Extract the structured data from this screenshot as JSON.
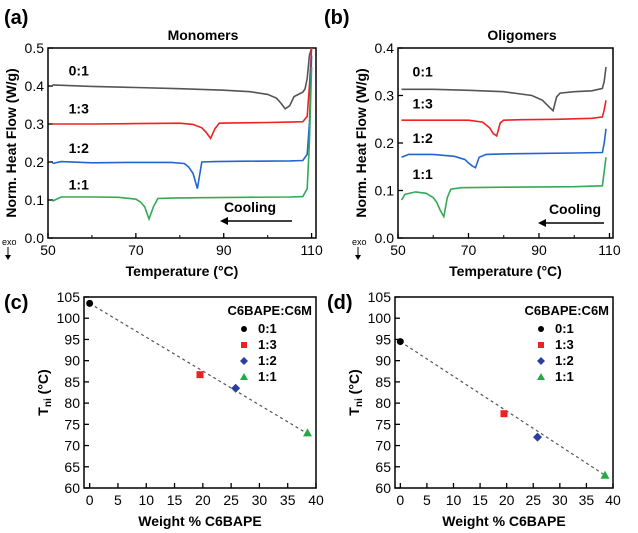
{
  "chart_data": [
    {
      "id": "a",
      "panel_label": "(a)",
      "type": "line",
      "title": "Monomers",
      "xlabel": "Temperature (°C)",
      "ylabel": "Norm. Heat Flow (W/g)",
      "xlim": [
        50,
        111
      ],
      "ylim": [
        0,
        0.5
      ],
      "xticks": [
        "50",
        "70",
        "90",
        "110"
      ],
      "yticks": [
        "0.0",
        "0.1",
        "0.2",
        "0.3",
        "0.4",
        "0.5"
      ],
      "annotation": "Cooling",
      "exo_label": "exo",
      "series": [
        {
          "name": "0:1",
          "color": "#555555",
          "x": [
            51,
            60,
            70,
            80,
            90,
            96,
            100,
            102,
            103,
            104,
            105,
            106,
            107,
            108,
            108.5,
            109,
            109.5,
            110
          ],
          "y": [
            0.403,
            0.399,
            0.396,
            0.393,
            0.389,
            0.385,
            0.378,
            0.368,
            0.355,
            0.34,
            0.348,
            0.372,
            0.378,
            0.384,
            0.392,
            0.42,
            0.48,
            0.5
          ]
        },
        {
          "name": "1:3",
          "color": "#ee2222",
          "x": [
            51,
            60,
            70,
            80,
            83,
            85,
            86,
            87,
            88,
            89,
            92,
            100,
            105,
            108,
            109,
            109.5,
            110
          ],
          "y": [
            0.3,
            0.3,
            0.301,
            0.302,
            0.299,
            0.29,
            0.278,
            0.262,
            0.288,
            0.302,
            0.303,
            0.304,
            0.305,
            0.306,
            0.32,
            0.4,
            0.5
          ]
        },
        {
          "name": "1:2",
          "color": "#2266cc",
          "x": [
            51,
            53,
            60,
            70,
            78,
            81,
            82,
            83,
            84,
            85,
            88,
            95,
            105,
            108,
            109,
            109.5,
            110
          ],
          "y": [
            0.196,
            0.201,
            0.198,
            0.199,
            0.199,
            0.196,
            0.187,
            0.17,
            0.13,
            0.2,
            0.201,
            0.202,
            0.203,
            0.204,
            0.22,
            0.3,
            0.48
          ]
        },
        {
          "name": "1:1",
          "color": "#33aa55",
          "x": [
            51,
            53,
            60,
            66,
            70,
            71,
            72,
            73,
            74,
            75,
            78,
            85,
            95,
            105,
            108,
            109,
            109.5,
            110
          ],
          "y": [
            0.097,
            0.108,
            0.108,
            0.107,
            0.102,
            0.095,
            0.082,
            0.05,
            0.082,
            0.104,
            0.105,
            0.106,
            0.107,
            0.108,
            0.109,
            0.13,
            0.25,
            0.45
          ]
        }
      ]
    },
    {
      "id": "b",
      "panel_label": "(b)",
      "type": "line",
      "title": "Oligomers",
      "xlabel": "Temperature (°C)",
      "ylabel": "Norm. Heat Flow (W/g)",
      "xlim": [
        50,
        111
      ],
      "ylim": [
        0,
        0.4
      ],
      "xticks": [
        "50",
        "70",
        "90",
        "110"
      ],
      "yticks": [
        "0.0",
        "0.1",
        "0.2",
        "0.3",
        "0.4"
      ],
      "annotation": "Cooling",
      "exo_label": "exo",
      "series": [
        {
          "name": "0:1",
          "color": "#555555",
          "x": [
            51,
            60,
            70,
            80,
            88,
            91,
            93,
            94,
            95,
            96,
            100,
            105,
            108,
            108.5,
            109
          ],
          "y": [
            0.313,
            0.313,
            0.311,
            0.308,
            0.3,
            0.29,
            0.275,
            0.268,
            0.297,
            0.305,
            0.308,
            0.31,
            0.315,
            0.33,
            0.36
          ]
        },
        {
          "name": "1:3",
          "color": "#ee2222",
          "x": [
            51,
            60,
            70,
            74,
            76,
            77,
            78,
            79,
            80,
            85,
            95,
            105,
            108,
            108.5,
            109
          ],
          "y": [
            0.248,
            0.248,
            0.248,
            0.244,
            0.232,
            0.22,
            0.215,
            0.242,
            0.248,
            0.249,
            0.25,
            0.252,
            0.255,
            0.27,
            0.29
          ]
        },
        {
          "name": "1:2",
          "color": "#2266cc",
          "x": [
            51,
            53,
            60,
            66,
            69,
            70,
            71,
            72,
            73,
            75,
            80,
            90,
            100,
            108,
            108.5,
            109
          ],
          "y": [
            0.17,
            0.176,
            0.176,
            0.172,
            0.165,
            0.158,
            0.152,
            0.148,
            0.17,
            0.176,
            0.177,
            0.178,
            0.179,
            0.18,
            0.2,
            0.23
          ]
        },
        {
          "name": "1:1",
          "color": "#33aa55",
          "x": [
            51,
            52,
            55,
            58,
            60,
            61,
            62,
            63,
            64,
            65,
            68,
            80,
            100,
            108,
            108.5,
            109
          ],
          "y": [
            0.08,
            0.092,
            0.097,
            0.094,
            0.085,
            0.075,
            0.058,
            0.045,
            0.085,
            0.103,
            0.106,
            0.107,
            0.108,
            0.11,
            0.14,
            0.17
          ]
        }
      ]
    },
    {
      "id": "c",
      "panel_label": "(c)",
      "type": "scatter",
      "xlabel": "Weight % C6BAPE",
      "ylabel": "Tni (°C)",
      "xlim": [
        -1,
        40
      ],
      "ylim": [
        60,
        105
      ],
      "xticks": [
        "0",
        "5",
        "10",
        "15",
        "20",
        "25",
        "30",
        "35",
        "40"
      ],
      "yticks": [
        "60",
        "65",
        "70",
        "75",
        "80",
        "85",
        "90",
        "95",
        "100",
        "105"
      ],
      "legend_title": "C6BAPE:C6M",
      "legend_position": "top-right",
      "series": [
        {
          "name": "0:1",
          "color": "#000000",
          "marker": "circle",
          "x": [
            0
          ],
          "y": [
            103.5
          ]
        },
        {
          "name": "1:3",
          "color": "#ee2222",
          "marker": "square",
          "x": [
            19.5
          ],
          "y": [
            86.7
          ]
        },
        {
          "name": "1:2",
          "color": "#2b3fa0",
          "marker": "diamond",
          "x": [
            25.8
          ],
          "y": [
            83.5
          ]
        },
        {
          "name": "1:1",
          "color": "#22aa44",
          "marker": "triangle",
          "x": [
            38.5
          ],
          "y": [
            73.0
          ]
        }
      ],
      "fit": {
        "x": [
          0,
          38.5
        ],
        "y": [
          103.5,
          72.8
        ]
      }
    },
    {
      "id": "d",
      "panel_label": "(d)",
      "type": "scatter",
      "xlabel": "Weight % C6BAPE",
      "ylabel": "Tni (°C)",
      "xlim": [
        -1,
        40
      ],
      "ylim": [
        60,
        105
      ],
      "xticks": [
        "0",
        "5",
        "10",
        "15",
        "20",
        "25",
        "30",
        "35",
        "40"
      ],
      "yticks": [
        "60",
        "65",
        "70",
        "75",
        "80",
        "85",
        "90",
        "95",
        "100",
        "105"
      ],
      "legend_title": "C6BAPE:C6M",
      "legend_position": "top-right",
      "series": [
        {
          "name": "0:1",
          "color": "#000000",
          "marker": "circle",
          "x": [
            0
          ],
          "y": [
            94.5
          ]
        },
        {
          "name": "1:3",
          "color": "#ee2222",
          "marker": "square",
          "x": [
            19.5
          ],
          "y": [
            77.5
          ]
        },
        {
          "name": "1:2",
          "color": "#2b3fa0",
          "marker": "diamond",
          "x": [
            25.8
          ],
          "y": [
            72.0
          ]
        },
        {
          "name": "1:1",
          "color": "#22aa44",
          "marker": "triangle",
          "x": [
            38.5
          ],
          "y": [
            63.0
          ]
        }
      ],
      "fit": {
        "x": [
          0,
          38.5
        ],
        "y": [
          94.5,
          63.0
        ]
      }
    }
  ]
}
